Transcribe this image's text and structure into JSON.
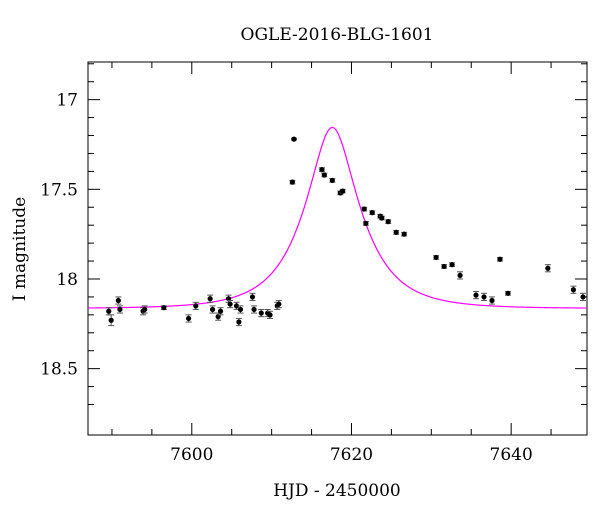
{
  "chart_data": {
    "type": "scatter",
    "title": "OGLE-2016-BLG-1601",
    "xlabel": "HJD - 2450000",
    "ylabel": "I magnitude",
    "xlim": [
      7587,
      7649.5
    ],
    "ylim": [
      18.87,
      16.79
    ],
    "y_inverted": true,
    "x_major_ticks": [
      7600,
      7620,
      7640
    ],
    "x_tick_labels": [
      "7600",
      "7620",
      "7640"
    ],
    "y_major_ticks": [
      17,
      17.5,
      18,
      18.5
    ],
    "y_tick_labels": [
      "17",
      "17.5",
      "18",
      "18.5"
    ],
    "grid": false,
    "legend": "none",
    "colors": {
      "data": "#000000",
      "model": "#ff00ff",
      "errorbar": "#555555"
    },
    "model": {
      "t0": 7617.6,
      "u0": 0.42,
      "tE": 6.3,
      "baseline_mag": 18.165
    },
    "series": [
      {
        "x": [
          7589.6,
          7589.9,
          7590.8,
          7591.0,
          7593.9,
          7594.1,
          7596.5,
          7599.6,
          7600.5,
          7602.3,
          7602.6,
          7603.3,
          7603.6,
          7604.6,
          7604.8,
          7605.6,
          7605.9,
          7606.1,
          7607.6,
          7607.8,
          7608.7,
          7609.5,
          7609.8,
          7610.7,
          7610.9,
          7612.6,
          7612.8,
          7616.3,
          7616.6,
          7617.6,
          7618.6,
          7618.9,
          7621.6,
          7621.8,
          7622.6,
          7623.6,
          7623.8,
          7624.6,
          7625.6,
          7626.6,
          7630.6,
          7631.6,
          7632.6,
          7633.6,
          7635.6,
          7636.6,
          7637.6,
          7638.6,
          7639.6,
          7644.6,
          7647.8,
          7649.0
        ],
        "y": [
          18.18,
          18.23,
          18.12,
          18.17,
          18.18,
          18.17,
          18.16,
          18.22,
          18.15,
          18.11,
          18.17,
          18.21,
          18.18,
          18.11,
          18.14,
          18.15,
          18.24,
          18.17,
          18.1,
          18.17,
          18.19,
          18.19,
          18.2,
          18.15,
          18.14,
          17.46,
          17.22,
          17.39,
          17.42,
          17.45,
          17.52,
          17.51,
          17.61,
          17.69,
          17.63,
          17.65,
          17.66,
          17.68,
          17.74,
          17.75,
          17.88,
          17.93,
          17.92,
          17.98,
          18.09,
          18.1,
          18.12,
          17.89,
          18.08,
          17.94,
          18.06,
          18.1
        ],
        "err": [
          0.02,
          0.03,
          0.02,
          0.02,
          0.02,
          0.02,
          0.01,
          0.02,
          0.02,
          0.02,
          0.02,
          0.02,
          0.02,
          0.02,
          0.02,
          0.02,
          0.02,
          0.02,
          0.02,
          0.02,
          0.02,
          0.02,
          0.02,
          0.02,
          0.02,
          0.01,
          0.005,
          0.01,
          0.01,
          0.01,
          0.01,
          0.01,
          0.01,
          0.01,
          0.01,
          0.01,
          0.01,
          0.01,
          0.01,
          0.01,
          0.01,
          0.01,
          0.01,
          0.02,
          0.02,
          0.02,
          0.02,
          0.01,
          0.01,
          0.02,
          0.02,
          0.02
        ]
      }
    ]
  }
}
